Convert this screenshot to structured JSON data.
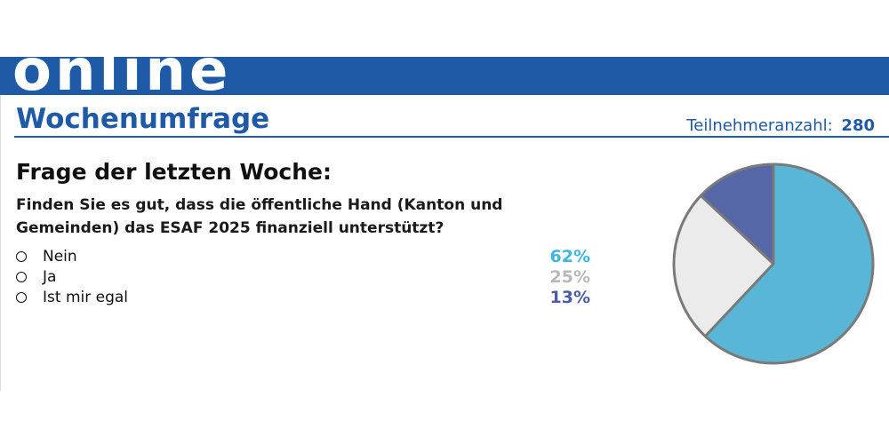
{
  "banner": {
    "text": "online"
  },
  "header": {
    "title": "Wochenumfrage",
    "participants_label": "Teilnehmeranzahl:",
    "participants_count": "280"
  },
  "question": {
    "heading": "Frage der letzten Woche:",
    "text": "Finden Sie es gut, dass die öffentliche Hand (Kanton und Gemeinden) das ESAF 2025 finanziell unterstützt?"
  },
  "options": [
    {
      "label": "Nein",
      "percent_text": "62%",
      "color": "#3fb6df"
    },
    {
      "label": "Ja",
      "percent_text": "25%",
      "color": "#b8b8b8"
    },
    {
      "label": "Ist mir egal",
      "percent_text": "13%",
      "color": "#4a5ca5"
    }
  ],
  "colors": {
    "brand_blue": "#1f5aa7",
    "text_dark": "#111111"
  },
  "chart_data": {
    "type": "pie",
    "title": "",
    "labels": [
      "Nein",
      "Ja",
      "Ist mir egal"
    ],
    "values": [
      62,
      25,
      13
    ],
    "colors": [
      "#5ab6d6",
      "#ebebeb",
      "#5667a7"
    ],
    "legend": "left"
  }
}
